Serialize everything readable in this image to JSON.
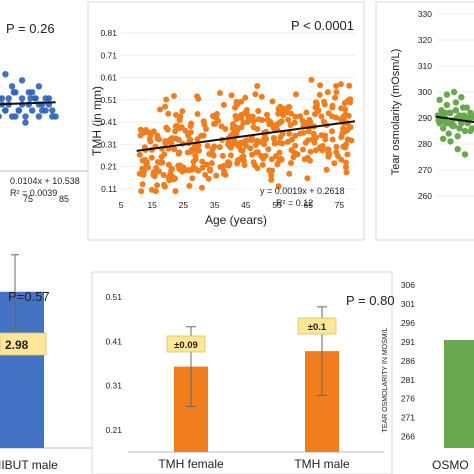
{
  "chart_data": [
    {
      "type": "scatter",
      "title": "",
      "p_value": "P = 0.26",
      "x_tick_labels": [
        "75",
        "85"
      ],
      "annotations": [
        "0.0104x + 10.538",
        "R² = 0.0039"
      ],
      "colors": {
        "points": "#2e63b8",
        "trend": "#111111"
      },
      "x": [
        12,
        15,
        18,
        20,
        22,
        25,
        27,
        30,
        32,
        35,
        38,
        40,
        42,
        44,
        46,
        48,
        50,
        52,
        54,
        56,
        58,
        60,
        62,
        64,
        66,
        68,
        70,
        72,
        74,
        76,
        78,
        40,
        45,
        50,
        55,
        60,
        65,
        70,
        35,
        30,
        25,
        48,
        52,
        58,
        62,
        66,
        70,
        74,
        78,
        44,
        46,
        50,
        54,
        56,
        60,
        64,
        68,
        72,
        76,
        80
      ],
      "y": [
        11,
        9,
        12,
        10,
        8,
        13,
        11,
        9,
        12,
        10,
        14,
        8,
        11,
        13,
        9,
        12,
        10,
        11,
        9,
        13,
        10,
        12,
        8,
        11,
        10,
        12,
        9,
        11,
        10,
        12,
        9,
        15,
        14,
        16,
        13,
        15,
        12,
        14,
        7,
        6,
        13,
        11,
        12,
        10,
        9,
        13,
        11,
        12,
        10,
        8,
        12,
        10,
        14,
        9,
        11,
        13,
        12,
        10,
        11,
        9
      ],
      "trend": {
        "slope": 0.0104,
        "intercept": 10.538
      }
    },
    {
      "type": "scatter",
      "title": "",
      "p_value": "P < 0.0001",
      "xlabel": "Age (years)",
      "ylabel": "TMH (in mm)",
      "x_ticks": [
        5,
        15,
        25,
        35,
        45,
        55,
        65,
        75
      ],
      "y_ticks": [
        0.11,
        0.21,
        0.31,
        0.41,
        0.51,
        0.61,
        0.71,
        0.81
      ],
      "xlim": [
        5,
        80
      ],
      "ylim": [
        0.06,
        0.81
      ],
      "annotations": [
        "y = 0.0019x + 0.2618",
        "R² = 0.12"
      ],
      "colors": {
        "points": "#f07d1e",
        "trend": "#111111"
      },
      "trend": {
        "slope": 0.0019,
        "intercept": 0.2618
      },
      "n_points": 420
    },
    {
      "type": "scatter",
      "title": "",
      "ylabel": "Tear osmolarity (mOsm/L)",
      "y_ticks": [
        260,
        270,
        280,
        290,
        300,
        310,
        320,
        330
      ],
      "ylim": [
        260,
        330
      ],
      "colors": {
        "points": "#6aa84f",
        "trend": "#111111"
      },
      "x": [
        12,
        14,
        16,
        18,
        20,
        22,
        24,
        26,
        28,
        30,
        32,
        34,
        36,
        38,
        40,
        42,
        44,
        46,
        48,
        50,
        14,
        18,
        22,
        26,
        30,
        34,
        38,
        42,
        46,
        50,
        16,
        20,
        24,
        28,
        32,
        36,
        40,
        44,
        48,
        13,
        17,
        21,
        25,
        29,
        33,
        37,
        41,
        45,
        49
      ],
      "y": [
        291,
        288,
        293,
        286,
        290,
        295,
        284,
        292,
        289,
        287,
        296,
        283,
        291,
        288,
        294,
        285,
        290,
        289,
        292,
        286,
        297,
        282,
        299,
        281,
        300,
        278,
        298,
        276,
        290,
        291,
        289,
        292,
        288,
        287,
        293,
        286,
        290,
        294,
        285,
        289,
        291,
        288,
        292,
        287,
        290,
        289,
        291,
        288,
        290
      ],
      "trend": {
        "slope": -0.05,
        "intercept": 291
      }
    },
    {
      "type": "bar",
      "title": "",
      "p_value": "P=0.57",
      "categories": [
        "NIBUT male"
      ],
      "visible_category_label": "IIBUT male",
      "values": [
        12.6
      ],
      "error_label": "2.98",
      "ylim": [
        0,
        20
      ],
      "colors": {
        "bar": "#4472c4"
      }
    },
    {
      "type": "bar",
      "title": "",
      "p_value": "P = 0.80",
      "categories": [
        "TMH female",
        "TMH male"
      ],
      "values": [
        0.353,
        0.388
      ],
      "errors": [
        0.09,
        0.1
      ],
      "error_labels": [
        "±0.09",
        "±0.1"
      ],
      "y_ticks": [
        0.21,
        0.31,
        0.41,
        0.51
      ],
      "ylim": [
        0.16,
        0.56
      ],
      "colors": {
        "bar": "#f07d1e",
        "label_box": "#ffe699"
      }
    },
    {
      "type": "bar",
      "title": "",
      "ylabel": "TEAR OSMOLARITY IN MOSM/L",
      "categories": [
        "OSMO"
      ],
      "values": [
        291.5
      ],
      "y_ticks": [
        266,
        271,
        276,
        281,
        286,
        291,
        296,
        301,
        306
      ],
      "ylim": [
        263,
        306
      ],
      "colors": {
        "bar": "#6aa84f"
      }
    }
  ]
}
